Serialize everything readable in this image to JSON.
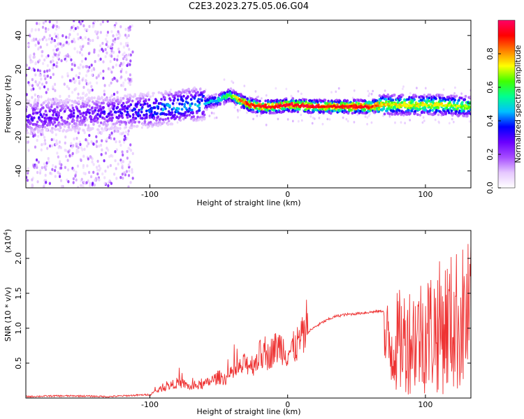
{
  "title": "C2E3.2023.275.05.06.G04",
  "chart_data": [
    {
      "type": "heatmap",
      "xlabel": "Height of straight line (km)",
      "ylabel": "Frequency (Hz)",
      "xlim": [
        -190,
        133
      ],
      "ylim": [
        -50,
        49
      ],
      "x_ticks": [
        -100,
        0,
        100
      ],
      "x_tick_labels": [
        "-100",
        "0",
        "100"
      ],
      "y_ticks": [
        -40,
        -20,
        0,
        20,
        40
      ],
      "y_tick_labels": [
        "-40",
        "-20",
        "0",
        "20",
        "40"
      ],
      "colorbar": {
        "label": "Normalized spectral amplitude",
        "range": [
          0,
          1
        ],
        "ticks": [
          0.0,
          0.2,
          0.4,
          0.6,
          0.8
        ],
        "tick_labels": [
          "0.0",
          "0.2",
          "0.4",
          "0.6",
          "0.8"
        ],
        "colors": [
          "#ffffff",
          "#e6c8ff",
          "#a64dff",
          "#6a00ff",
          "#0000ff",
          "#00c0ff",
          "#00ff90",
          "#40ff00",
          "#ffff00",
          "#ff8000",
          "#ff0000",
          "#ff0066"
        ]
      },
      "ridge": {
        "x": [
          -185,
          -160,
          -140,
          -120,
          -100,
          -80,
          -60,
          -50,
          -42,
          -35,
          -28,
          -20,
          -10,
          0,
          20,
          40,
          60,
          70,
          90,
          110,
          133
        ],
        "frequency": [
          -8,
          -7,
          -6,
          -5,
          -4,
          -2,
          0,
          2,
          5,
          2,
          -1,
          -2,
          -2,
          -1,
          -2,
          -2,
          -2,
          -1,
          -1,
          -1,
          -2
        ],
        "amplitude": [
          0.3,
          0.25,
          0.28,
          0.32,
          0.4,
          0.45,
          0.45,
          0.5,
          0.6,
          0.8,
          0.9,
          0.92,
          0.93,
          0.95,
          0.93,
          0.92,
          0.9,
          0.75,
          0.7,
          0.72,
          0.65
        ]
      }
    },
    {
      "type": "line",
      "xlabel": "Height of straight line (km)",
      "ylabel": "SNR (10 * v/v)",
      "y_exponent_label": "(x10",
      "y_exponent": "4",
      "y_exponent_close": ")",
      "xlim": [
        -190,
        133
      ],
      "ylim": [
        0,
        2.4
      ],
      "x_ticks": [
        -100,
        0,
        100
      ],
      "x_tick_labels": [
        "-100",
        "0",
        "100"
      ],
      "y_ticks": [
        0.5,
        1.0,
        1.5,
        2.0
      ],
      "y_tick_labels": [
        "0.5",
        "1.0",
        "1.5",
        "2.0"
      ],
      "series": [
        {
          "color": "#ee3333",
          "x": [
            -190,
            -170,
            -150,
            -130,
            -110,
            -100,
            -95,
            -90,
            -85,
            -80,
            -75,
            -70,
            -65,
            -60,
            -55,
            -50,
            -45,
            -40,
            -35,
            -30,
            -25,
            -20,
            -15,
            -10,
            -5,
            0,
            5,
            10,
            15,
            20,
            25,
            30,
            35,
            40,
            45,
            50,
            55,
            60,
            65,
            70
          ],
          "y": [
            0.02,
            0.03,
            0.03,
            0.02,
            0.04,
            0.05,
            0.1,
            0.15,
            0.18,
            0.22,
            0.2,
            0.15,
            0.18,
            0.2,
            0.25,
            0.3,
            0.28,
            0.35,
            0.42,
            0.5,
            0.48,
            0.62,
            0.58,
            0.7,
            0.75,
            0.65,
            0.72,
            0.85,
            0.95,
            1.02,
            1.08,
            1.13,
            1.17,
            1.19,
            1.2,
            1.21,
            1.22,
            1.23,
            1.24,
            1.25
          ]
        }
      ],
      "noisy_segment": {
        "x_range": [
          70,
          133
        ],
        "y_range": [
          0.05,
          2.4
        ]
      }
    }
  ]
}
